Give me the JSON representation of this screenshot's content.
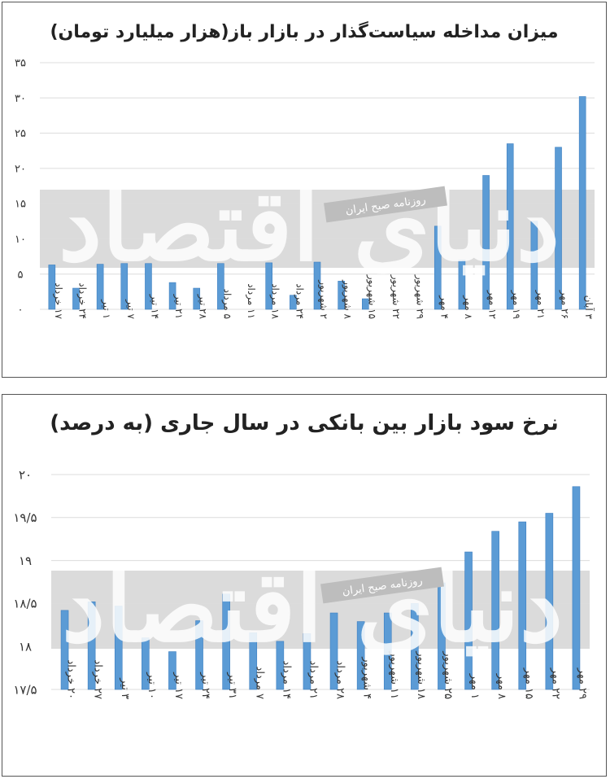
{
  "watermark": {
    "big_text": "دنیای اقتصاد",
    "small_text": "روزنامه صبح ایران"
  },
  "colors": {
    "bar": "#5b9bd5",
    "band": "#cfcfcf"
  },
  "chart_data": [
    {
      "type": "bar",
      "title": "میزان مداخله سیاست‌گذار در بازار باز(هزار میلیارد تومان)",
      "ylim": [
        0,
        35
      ],
      "yticks": [
        "۰",
        "۵",
        "۱۰",
        "۱۵",
        "۲۰",
        "۲۵",
        "۳۰",
        "۳۵"
      ],
      "ytick_values": [
        0,
        5,
        10,
        15,
        20,
        25,
        30,
        35
      ],
      "grid": true,
      "categories": [
        "۱۷ خرداد",
        "۲۴ خرداد",
        "۱ تیر",
        "۷ تیر",
        "۱۴ تیر",
        "۲۱ تیر",
        "۲۸ تیر",
        "۵ مرداد",
        "۱۱ مرداد",
        "۱۸ مرداد",
        "۲۴ مرداد",
        "۲ شهریور",
        "۸ شهریور",
        "۱۵ شهریور",
        "۲۲ شهریور",
        "۲۹ شهریور",
        "۴ مهر",
        "۸ مهر",
        "۱۲ مهر",
        "۱۹ مهر",
        "۲۱ مهر",
        "۲۶ مهر",
        "۳ آبان"
      ],
      "values": [
        6.3,
        3.0,
        6.4,
        6.5,
        6.5,
        3.8,
        3.0,
        6.5,
        0,
        6.6,
        2.0,
        6.7,
        4.0,
        1.5,
        0,
        0,
        11.8,
        7.0,
        19.0,
        23.5,
        12.5,
        23.0,
        30.2
      ]
    },
    {
      "type": "bar",
      "title": "نرخ سود بازار بین بانکی در سال جاری (به درصد)",
      "ylim": [
        17.5,
        20
      ],
      "yticks": [
        "۱۷/۵",
        "۱۸",
        "۱۸/۵",
        "۱۹",
        "۱۹/۵",
        "۲۰"
      ],
      "ytick_values": [
        17.5,
        18,
        18.5,
        19,
        19.5,
        20
      ],
      "grid": true,
      "categories": [
        "۲۰ خرداد",
        "۲۷ خرداد",
        "۳ تیر",
        "۱۰ تیر",
        "۱۷ تیر",
        "۲۴ تیر",
        "۳۱ تیر",
        "۷ مرداد",
        "۱۴ مرداد",
        "۲۱ مرداد",
        "۲۸ مرداد",
        "۴ شهریور",
        "۱۱ شهریور",
        "۱۸ شهریور",
        "۲۵ شهریور",
        "۱ مهر",
        "۸ مهر",
        "۱۵ مهر",
        "۲۲ مهر",
        "۲۹ مهر"
      ],
      "values": [
        18.42,
        18.52,
        18.47,
        18.1,
        17.94,
        18.3,
        18.61,
        18.16,
        18.06,
        18.15,
        18.39,
        18.29,
        18.39,
        18.5,
        18.74,
        19.1,
        19.34,
        19.45,
        19.55,
        19.86
      ]
    }
  ]
}
